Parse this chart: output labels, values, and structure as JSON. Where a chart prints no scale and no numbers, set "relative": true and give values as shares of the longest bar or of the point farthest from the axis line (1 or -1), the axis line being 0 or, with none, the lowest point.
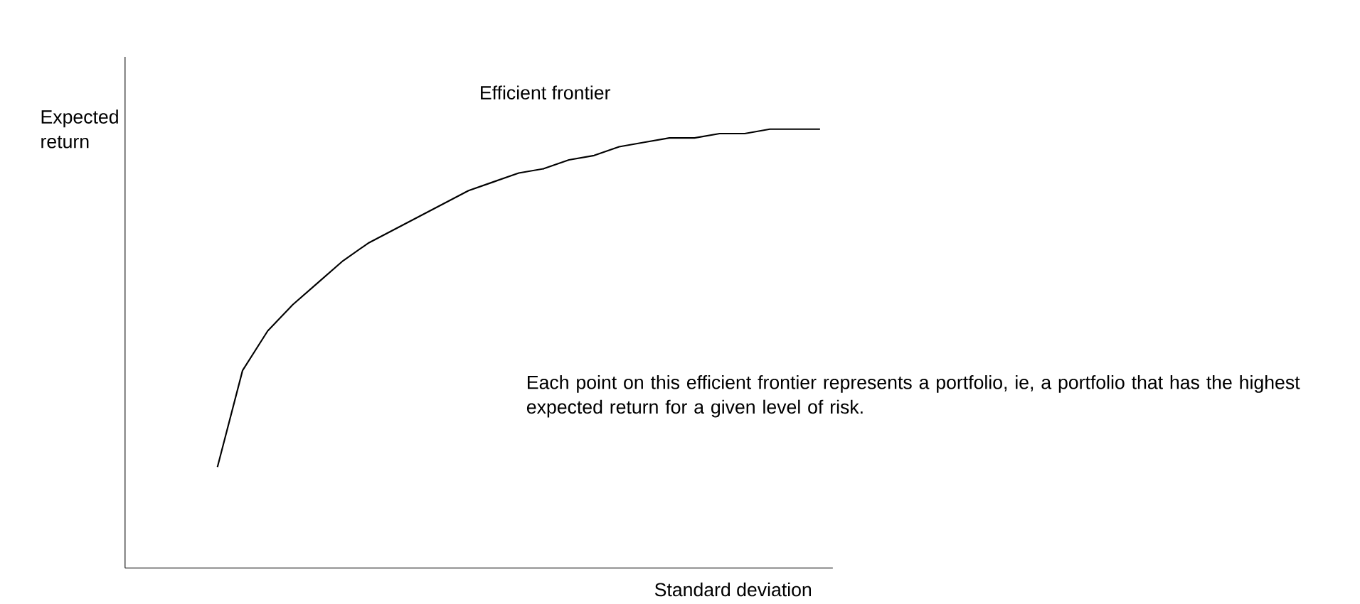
{
  "chart_data": {
    "type": "line",
    "relative": true,
    "color": "#000000",
    "xlabel": "Standard deviation",
    "ylabel": "Expected return",
    "categories": [
      null,
      null,
      null,
      null,
      null,
      null,
      null,
      null,
      null,
      null,
      null,
      null,
      null,
      null,
      null,
      null,
      null,
      null,
      null,
      null,
      null,
      null,
      null,
      null,
      null
    ],
    "values": [
      0.23,
      0.45,
      0.54,
      0.6,
      0.65,
      0.7,
      0.74,
      0.77,
      0.8,
      0.83,
      0.86,
      0.88,
      0.9,
      0.91,
      0.93,
      0.94,
      0.96,
      0.97,
      0.98,
      0.98,
      0.99,
      0.99,
      1.0,
      1.0,
      1.0
    ],
    "annotations": [
      "Efficient frontier",
      "Each point on this efficient frontier represents a portfolio, ie, a portfolio that has the highest expected return for a given level of risk."
    ]
  }
}
